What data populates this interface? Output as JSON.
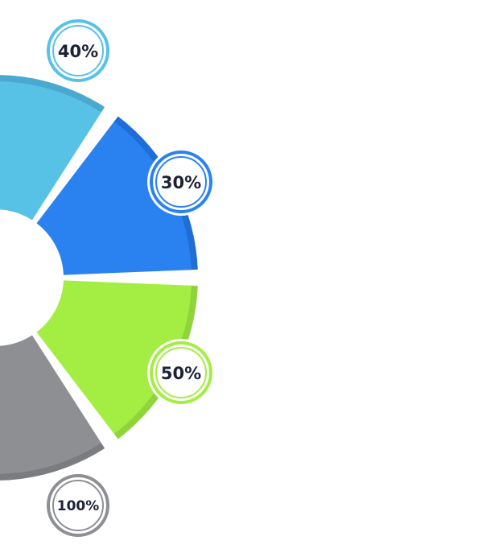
{
  "diagram": {
    "segments": [
      {
        "label": "40%",
        "color": "#57c1e6",
        "rim_color": "#4aa9cf",
        "badge_ring": "#57c1e6"
      },
      {
        "label": "30%",
        "color": "#2a82f0",
        "rim_color": "#1f6ed6",
        "badge_ring": "#2a82f0"
      },
      {
        "label": "50%",
        "color": "#a4ed43",
        "rim_color": "#8fd43a",
        "badge_ring": "#a4ed43"
      },
      {
        "label": "100%",
        "color": "#8d8f92",
        "rim_color": "#7a7c80",
        "badge_ring": "#8d8f92"
      }
    ],
    "badge_text_color": "#1c2238"
  }
}
